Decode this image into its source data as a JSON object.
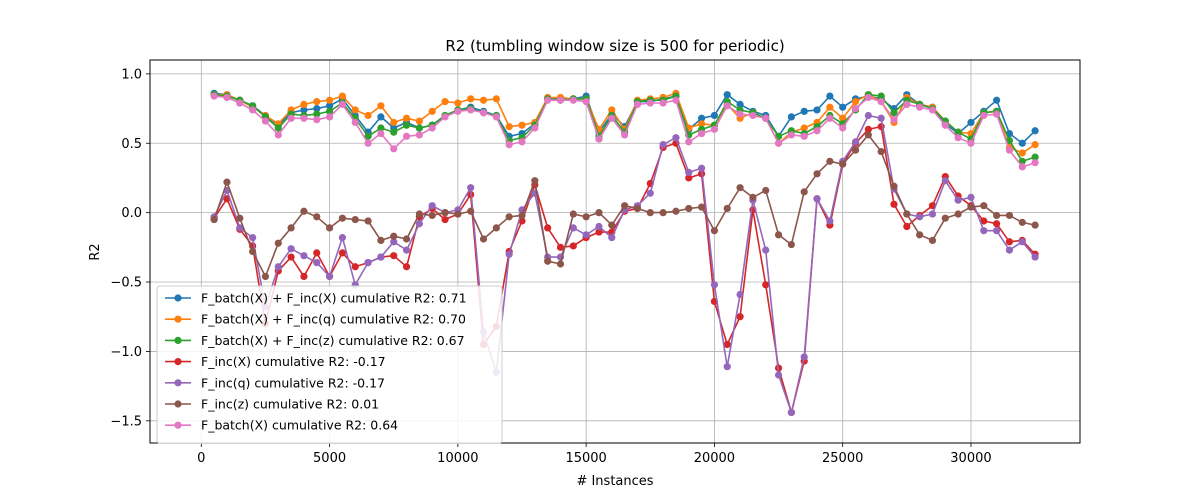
{
  "chart_data": {
    "type": "line",
    "title": "R2 (tumbling window size is 500 for periodic)",
    "xlabel": "# Instances",
    "ylabel": "R2",
    "xlim": [
      -2000,
      34250
    ],
    "ylim": [
      -1.66,
      1.1
    ],
    "xticks": [
      0,
      5000,
      10000,
      15000,
      20000,
      25000,
      30000
    ],
    "yticks": [
      1.0,
      0.5,
      0.0,
      -0.5,
      -1.0,
      -1.5
    ],
    "xtick_labels": [
      "0",
      "5000",
      "10000",
      "15000",
      "20000",
      "25000",
      "30000"
    ],
    "ytick_labels": [
      "1.0",
      "0.5",
      "0.0",
      "−0.5",
      "−1.0",
      "−1.5"
    ],
    "grid": true,
    "legend_position": "lower-left",
    "x": [
      500,
      1000,
      1500,
      2000,
      2500,
      3000,
      3500,
      4000,
      4500,
      5000,
      5500,
      6000,
      6500,
      7000,
      7500,
      8000,
      8500,
      9000,
      9500,
      10000,
      10500,
      11000,
      11500,
      12000,
      12500,
      13000,
      13500,
      14000,
      14500,
      15000,
      15500,
      16000,
      16500,
      17000,
      17500,
      18000,
      18500,
      19000,
      19500,
      20000,
      20500,
      21000,
      21500,
      22000,
      22500,
      23000,
      23500,
      24000,
      24500,
      25000,
      25500,
      26000,
      26500,
      27000,
      27500,
      28000,
      28500,
      29000,
      29500,
      30000,
      30500,
      31000,
      31500,
      32000,
      32500
    ],
    "series": [
      {
        "name": "F_batch(X) + F_inc(X) cumulative R2: 0.71",
        "color": "#1f77b4",
        "values": [
          0.86,
          0.85,
          0.81,
          0.77,
          0.7,
          0.63,
          0.72,
          0.74,
          0.75,
          0.77,
          0.82,
          0.7,
          0.58,
          0.69,
          0.61,
          0.65,
          0.61,
          0.63,
          0.7,
          0.74,
          0.76,
          0.73,
          0.7,
          0.55,
          0.57,
          0.64,
          0.82,
          0.82,
          0.82,
          0.84,
          0.58,
          0.71,
          0.62,
          0.8,
          0.8,
          0.82,
          0.84,
          0.6,
          0.68,
          0.7,
          0.85,
          0.78,
          0.73,
          0.7,
          0.55,
          0.69,
          0.73,
          0.74,
          0.84,
          0.76,
          0.82,
          0.84,
          0.82,
          0.75,
          0.85,
          0.78,
          0.76,
          0.64,
          0.57,
          0.65,
          0.73,
          0.81,
          0.57,
          0.5,
          0.59
        ]
      },
      {
        "name": "F_batch(X) + F_inc(q) cumulative R2: 0.70",
        "color": "#ff7f0e",
        "values": [
          0.85,
          0.85,
          0.81,
          0.76,
          0.7,
          0.64,
          0.74,
          0.78,
          0.8,
          0.81,
          0.84,
          0.74,
          0.7,
          0.77,
          0.65,
          0.68,
          0.66,
          0.73,
          0.8,
          0.79,
          0.82,
          0.81,
          0.82,
          0.62,
          0.63,
          0.65,
          0.83,
          0.83,
          0.82,
          0.82,
          0.6,
          0.74,
          0.6,
          0.81,
          0.82,
          0.83,
          0.86,
          0.61,
          0.64,
          0.63,
          0.78,
          0.68,
          0.72,
          0.68,
          0.5,
          0.58,
          0.61,
          0.65,
          0.76,
          0.68,
          0.8,
          0.85,
          0.8,
          0.65,
          0.83,
          0.78,
          0.76,
          0.66,
          0.58,
          0.57,
          0.72,
          0.73,
          0.47,
          0.43,
          0.49
        ]
      },
      {
        "name": "F_batch(X) + F_inc(z) cumulative R2: 0.67",
        "color": "#2ca02c",
        "values": [
          0.85,
          0.84,
          0.81,
          0.77,
          0.69,
          0.61,
          0.71,
          0.7,
          0.71,
          0.73,
          0.79,
          0.68,
          0.55,
          0.61,
          0.58,
          0.63,
          0.61,
          0.63,
          0.7,
          0.74,
          0.75,
          0.72,
          0.7,
          0.52,
          0.54,
          0.63,
          0.82,
          0.81,
          0.82,
          0.82,
          0.55,
          0.7,
          0.58,
          0.8,
          0.81,
          0.81,
          0.84,
          0.56,
          0.6,
          0.63,
          0.8,
          0.74,
          0.72,
          0.68,
          0.55,
          0.59,
          0.57,
          0.62,
          0.7,
          0.64,
          0.74,
          0.85,
          0.84,
          0.72,
          0.81,
          0.78,
          0.75,
          0.66,
          0.58,
          0.53,
          0.72,
          0.73,
          0.52,
          0.37,
          0.4
        ]
      },
      {
        "name": "F_inc(X) cumulative R2: -0.17",
        "color": "#d62728",
        "values": [
          -0.04,
          0.1,
          -0.12,
          -0.24,
          -0.8,
          -0.42,
          -0.32,
          -0.46,
          -0.29,
          -0.46,
          -0.29,
          -0.39,
          -0.36,
          -0.32,
          -0.31,
          -0.39,
          -0.03,
          0.03,
          -0.05,
          -0.01,
          0.13,
          -0.95,
          -0.82,
          -0.28,
          -0.06,
          0.2,
          -0.11,
          -0.25,
          -0.24,
          -0.18,
          -0.14,
          -0.14,
          0.01,
          0.03,
          0.21,
          0.47,
          0.5,
          0.25,
          0.28,
          -0.64,
          -0.95,
          -0.75,
          0.02,
          -0.52,
          -1.12,
          -1.44,
          -1.07,
          0.1,
          -0.09,
          0.35,
          0.5,
          0.6,
          0.62,
          0.06,
          -0.1,
          -0.02,
          0.05,
          0.26,
          0.12,
          0.05,
          -0.06,
          -0.08,
          -0.21,
          -0.2,
          -0.3
        ]
      },
      {
        "name": "F_inc(q) cumulative R2: -0.17",
        "color": "#9467bd",
        "values": [
          -0.03,
          0.16,
          -0.11,
          -0.18,
          -0.68,
          -0.39,
          -0.26,
          -0.31,
          -0.36,
          -0.46,
          -0.18,
          -0.52,
          -0.36,
          -0.32,
          -0.21,
          -0.27,
          -0.08,
          0.05,
          0.0,
          0.02,
          0.18,
          -0.86,
          -1.15,
          -0.3,
          0.02,
          0.14,
          -0.32,
          -0.32,
          -0.11,
          -0.16,
          -0.1,
          -0.18,
          0.02,
          0.05,
          0.14,
          0.49,
          0.54,
          0.29,
          0.32,
          -0.52,
          -1.11,
          -0.59,
          0.09,
          -0.27,
          -1.17,
          -1.44,
          -1.04,
          0.1,
          -0.06,
          0.37,
          0.51,
          0.7,
          0.68,
          0.17,
          -0.01,
          -0.03,
          -0.01,
          0.23,
          0.09,
          0.11,
          -0.13,
          -0.13,
          -0.27,
          -0.21,
          -0.32
        ]
      },
      {
        "name": "F_inc(z) cumulative R2: 0.01",
        "color": "#8c564b",
        "values": [
          -0.05,
          0.22,
          -0.04,
          -0.28,
          -0.46,
          -0.22,
          -0.11,
          0.01,
          -0.03,
          -0.11,
          -0.04,
          -0.05,
          -0.06,
          -0.2,
          -0.17,
          -0.19,
          -0.01,
          -0.02,
          0.0,
          -0.01,
          0.01,
          -0.19,
          -0.11,
          -0.03,
          -0.02,
          0.23,
          -0.35,
          -0.37,
          -0.01,
          -0.03,
          0.0,
          -0.09,
          0.05,
          0.03,
          0.0,
          0.0,
          0.01,
          0.03,
          0.04,
          -0.13,
          0.03,
          0.18,
          0.11,
          0.16,
          -0.16,
          -0.23,
          0.15,
          0.28,
          0.37,
          0.35,
          0.45,
          0.56,
          0.44,
          0.19,
          -0.01,
          -0.16,
          -0.2,
          -0.04,
          -0.01,
          0.04,
          0.05,
          -0.02,
          -0.02,
          -0.07,
          -0.09
        ]
      },
      {
        "name": "F_batch(X) cumulative R2: 0.64",
        "color": "#e377c2",
        "values": [
          0.84,
          0.83,
          0.79,
          0.74,
          0.66,
          0.56,
          0.68,
          0.68,
          0.67,
          0.69,
          0.78,
          0.65,
          0.5,
          0.57,
          0.46,
          0.55,
          0.56,
          0.61,
          0.69,
          0.73,
          0.74,
          0.72,
          0.69,
          0.49,
          0.51,
          0.61,
          0.81,
          0.81,
          0.81,
          0.8,
          0.53,
          0.68,
          0.56,
          0.78,
          0.79,
          0.79,
          0.81,
          0.51,
          0.57,
          0.6,
          0.77,
          0.71,
          0.7,
          0.68,
          0.5,
          0.56,
          0.55,
          0.59,
          0.68,
          0.61,
          0.75,
          0.83,
          0.8,
          0.67,
          0.78,
          0.76,
          0.74,
          0.63,
          0.54,
          0.5,
          0.7,
          0.71,
          0.45,
          0.33,
          0.36
        ]
      }
    ]
  }
}
